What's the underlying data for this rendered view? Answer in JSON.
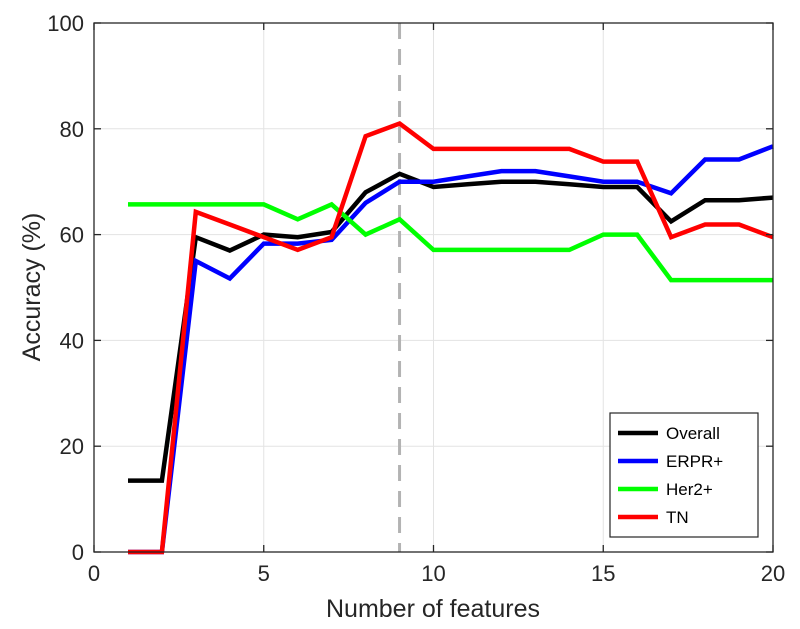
{
  "chart_data": {
    "type": "line",
    "xlabel": "Number of features",
    "ylabel": "Accuracy (%)",
    "xlim": [
      0,
      20
    ],
    "ylim": [
      0,
      100
    ],
    "xticks": [
      0,
      5,
      10,
      15,
      20
    ],
    "yticks": [
      0,
      20,
      40,
      60,
      80,
      100
    ],
    "x_tick_labels": [
      "0",
      "5",
      "10",
      "15",
      "20"
    ],
    "y_tick_labels": [
      "0",
      "20",
      "40",
      "60",
      "80",
      "100"
    ],
    "grid": true,
    "legend_position": "bottom-right",
    "reference_line": {
      "x": 9,
      "style": "dashed",
      "color": "#b3b3b3"
    },
    "x": [
      1,
      2,
      3,
      4,
      5,
      6,
      7,
      8,
      9,
      10,
      11,
      12,
      13,
      14,
      15,
      16,
      17,
      18,
      19,
      20
    ],
    "series": [
      {
        "name": "Overall",
        "color": "#000000",
        "values": [
          13.5,
          13.5,
          59.5,
          57,
          60,
          59.5,
          60.5,
          68,
          71.5,
          69,
          69.5,
          70,
          70,
          69.5,
          69,
          69,
          62.5,
          66.5,
          66.5,
          67
        ]
      },
      {
        "name": "ERPR+",
        "color": "#0000ff",
        "values": [
          0,
          0,
          55,
          51.7,
          58.3,
          58.3,
          59,
          66,
          70,
          70,
          71,
          72,
          72,
          71,
          70,
          70,
          67.8,
          74.2,
          74.2,
          76.7
        ]
      },
      {
        "name": "Her2+",
        "color": "#00ff00",
        "values": [
          65.7,
          65.7,
          65.7,
          65.7,
          65.7,
          62.9,
          65.7,
          60,
          62.9,
          57.1,
          57.1,
          57.1,
          57.1,
          57.1,
          60,
          60,
          51.4,
          51.4,
          51.4,
          51.4
        ]
      },
      {
        "name": "TN",
        "color": "#ff0000",
        "values": [
          0,
          0,
          64.3,
          61.9,
          59.5,
          57.1,
          59.5,
          78.6,
          81,
          76.2,
          76.2,
          76.2,
          76.2,
          76.2,
          73.8,
          73.8,
          59.5,
          61.9,
          61.9,
          59.5
        ]
      }
    ]
  }
}
